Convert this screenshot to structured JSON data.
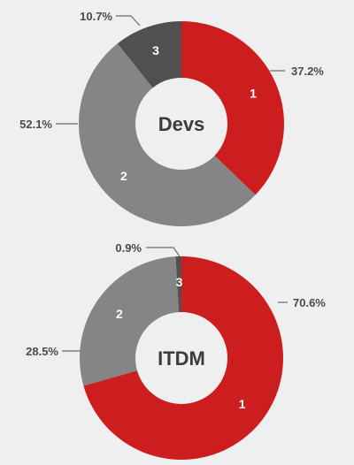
{
  "colors": {
    "background": "#efefef",
    "red": "#cc1e1e",
    "gray": "#858585",
    "dark": "#505050",
    "hole": "#efefef"
  },
  "chart_data": [
    {
      "type": "pie",
      "title": "Devs",
      "slices": [
        {
          "label": "1",
          "value": 37.2,
          "value_label": "37.2%",
          "color": "#cc1e1e"
        },
        {
          "label": "2",
          "value": 52.1,
          "value_label": "52.1%",
          "color": "#858585"
        },
        {
          "label": "3",
          "value": 10.7,
          "value_label": "10.7%",
          "color": "#505050"
        }
      ]
    },
    {
      "type": "pie",
      "title": "ITDM",
      "slices": [
        {
          "label": "1",
          "value": 70.6,
          "value_label": "70.6%",
          "color": "#cc1e1e"
        },
        {
          "label": "2",
          "value": 28.5,
          "value_label": "28.5%",
          "color": "#858585"
        },
        {
          "label": "3",
          "value": 0.9,
          "value_label": "0.9%",
          "color": "#505050"
        }
      ]
    }
  ]
}
